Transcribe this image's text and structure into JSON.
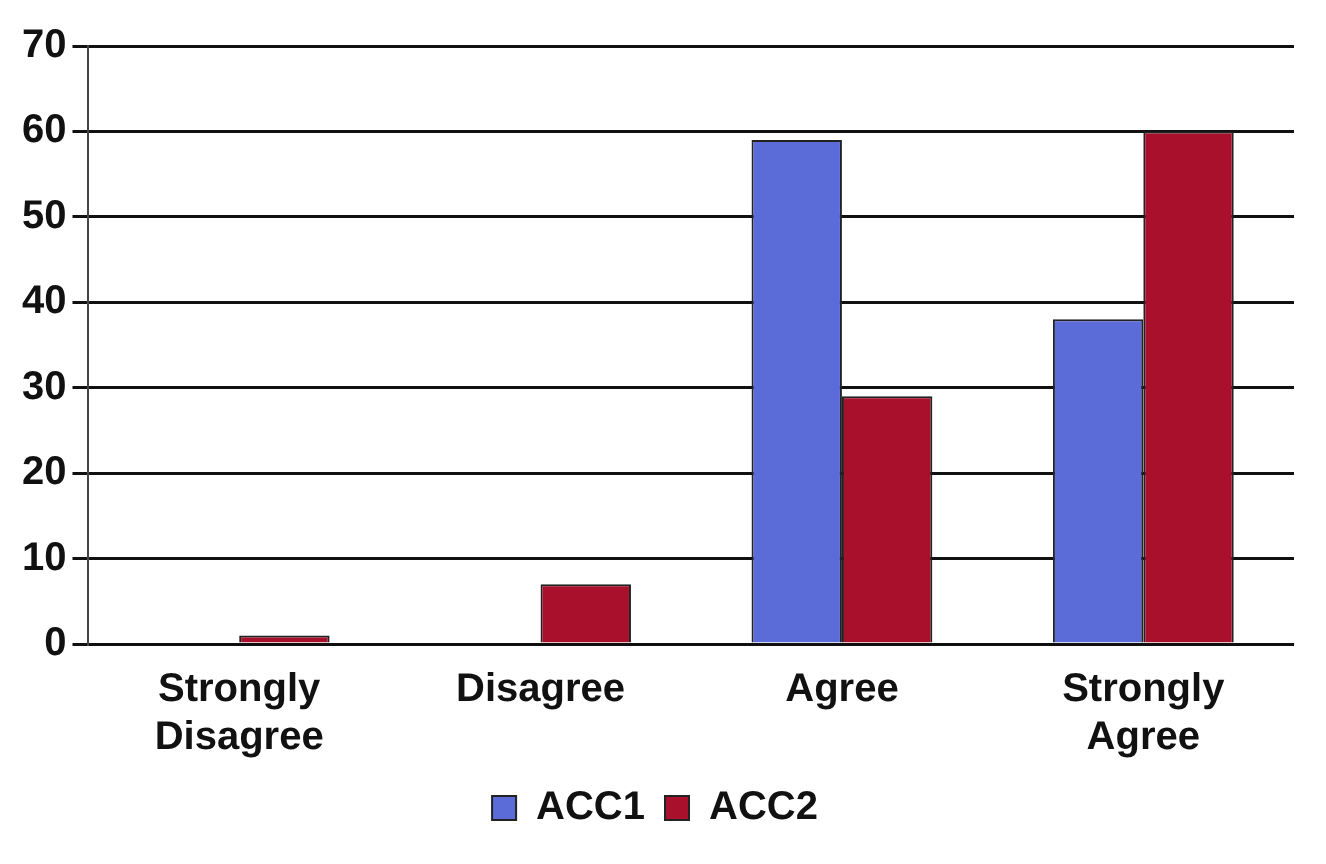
{
  "chart_data": {
    "type": "bar",
    "categories": [
      "Strongly Disagree",
      "Disagree",
      "Agree",
      "Strongly Agree"
    ],
    "series": [
      {
        "name": "ACC1",
        "color": "#5b6cd8",
        "values": [
          0,
          0,
          59,
          38
        ]
      },
      {
        "name": "ACC2",
        "color": "#a8102c",
        "values": [
          1,
          7,
          29,
          60
        ]
      }
    ],
    "ylim": [
      0,
      70
    ],
    "yticks": [
      0,
      10,
      20,
      30,
      40,
      50,
      60,
      70
    ],
    "grid": "y",
    "legend": "bottom"
  }
}
